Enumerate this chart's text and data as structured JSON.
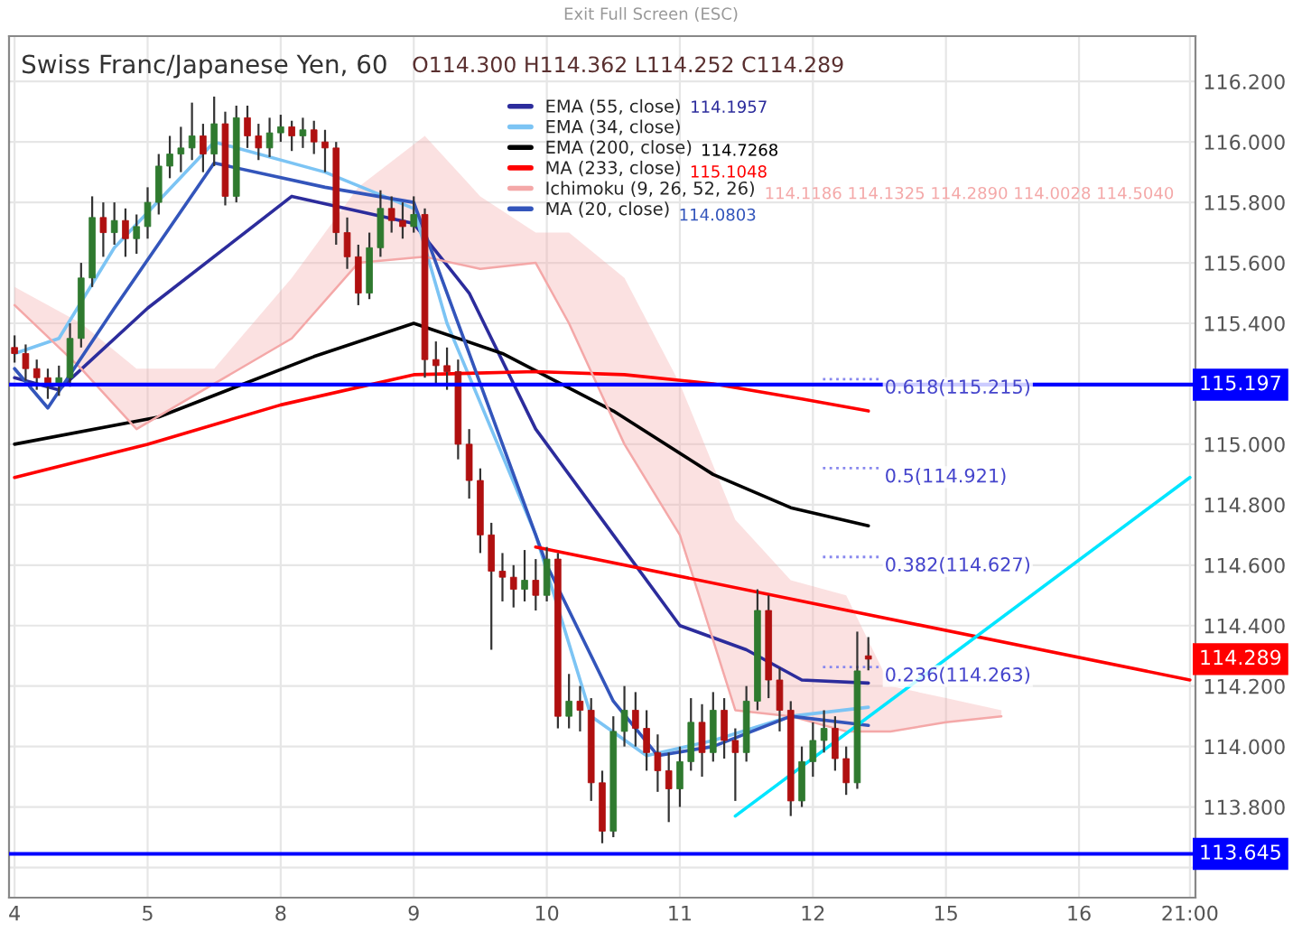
{
  "chart_data": {
    "type": "candlestick",
    "title": "Swiss Franc/Japanese Yen, 60",
    "subtitle": "O114.300 H114.362 L114.252 C114.289",
    "categories": [
      "4",
      null,
      null,
      null,
      null,
      null,
      null,
      null,
      null,
      null,
      null,
      null,
      "5",
      null,
      null,
      null,
      null,
      null,
      null,
      null,
      null,
      null,
      null,
      null,
      "8",
      null,
      null,
      null,
      null,
      null,
      null,
      null,
      null,
      null,
      null,
      null,
      "9",
      null,
      null,
      null,
      null,
      null,
      null,
      null,
      null,
      null,
      null,
      null,
      "10",
      null,
      null,
      null,
      null,
      null,
      null,
      null,
      null,
      null,
      null,
      null,
      "11",
      null,
      null,
      null,
      null,
      null,
      null,
      null,
      null,
      null,
      null,
      null,
      "12",
      null,
      null,
      null,
      null,
      null,
      null,
      null,
      null,
      null,
      null,
      null,
      "15",
      null,
      null,
      null,
      null,
      null,
      null,
      null,
      null,
      null,
      null,
      null,
      "16",
      null,
      null,
      null,
      null,
      null,
      null,
      null,
      null,
      null,
      "21:00"
    ],
    "ohlc": [
      [
        115.32,
        115.36,
        115.27,
        115.3
      ],
      [
        115.3,
        115.33,
        115.21,
        115.25
      ],
      [
        115.25,
        115.28,
        115.18,
        115.22
      ],
      [
        115.22,
        115.25,
        115.15,
        115.2
      ],
      [
        115.2,
        115.26,
        115.16,
        115.22
      ],
      [
        115.22,
        115.4,
        115.19,
        115.35
      ],
      [
        115.35,
        115.6,
        115.32,
        115.55
      ],
      [
        115.55,
        115.82,
        115.52,
        115.75
      ],
      [
        115.75,
        115.8,
        115.62,
        115.7
      ],
      [
        115.7,
        115.8,
        115.66,
        115.74
      ],
      [
        115.74,
        115.78,
        115.62,
        115.68
      ],
      [
        115.68,
        115.76,
        115.63,
        115.72
      ],
      [
        115.72,
        115.85,
        115.68,
        115.8
      ],
      [
        115.8,
        115.96,
        115.76,
        115.92
      ],
      [
        115.92,
        116.02,
        115.88,
        115.96
      ],
      [
        115.96,
        116.05,
        115.9,
        115.98
      ],
      [
        115.98,
        116.13,
        115.94,
        116.02
      ],
      [
        116.02,
        116.06,
        115.9,
        115.96
      ],
      [
        115.96,
        116.15,
        115.92,
        116.06
      ],
      [
        116.06,
        116.1,
        115.79,
        115.82
      ],
      [
        115.82,
        116.12,
        115.8,
        116.08
      ],
      [
        116.08,
        116.12,
        115.98,
        116.02
      ],
      [
        116.02,
        116.06,
        115.94,
        115.98
      ],
      [
        115.98,
        116.08,
        115.95,
        116.03
      ],
      [
        116.03,
        116.09,
        116.0,
        116.05
      ],
      [
        116.05,
        116.07,
        115.97,
        116.02
      ],
      [
        116.02,
        116.08,
        115.98,
        116.04
      ],
      [
        116.04,
        116.07,
        115.96,
        116.0
      ],
      [
        116.0,
        116.04,
        115.9,
        115.98
      ],
      [
        115.98,
        116.0,
        115.66,
        115.7
      ],
      [
        115.7,
        115.75,
        115.58,
        115.62
      ],
      [
        115.62,
        115.66,
        115.46,
        115.5
      ],
      [
        115.5,
        115.7,
        115.48,
        115.65
      ],
      [
        115.65,
        115.84,
        115.62,
        115.78
      ],
      [
        115.78,
        115.82,
        115.7,
        115.74
      ],
      [
        115.74,
        115.8,
        115.68,
        115.72
      ],
      [
        115.72,
        115.82,
        115.7,
        115.76
      ],
      [
        115.76,
        115.78,
        115.22,
        115.28
      ],
      [
        115.28,
        115.34,
        115.2,
        115.26
      ],
      [
        115.26,
        115.32,
        115.18,
        115.24
      ],
      [
        115.24,
        115.28,
        114.95,
        115.0
      ],
      [
        115.0,
        115.05,
        114.82,
        114.88
      ],
      [
        114.88,
        114.92,
        114.64,
        114.7
      ],
      [
        114.7,
        114.74,
        114.32,
        114.58
      ],
      [
        114.58,
        114.64,
        114.48,
        114.56
      ],
      [
        114.56,
        114.6,
        114.46,
        114.52
      ],
      [
        114.52,
        114.65,
        114.48,
        114.55
      ],
      [
        114.55,
        114.62,
        114.45,
        114.5
      ],
      [
        114.5,
        114.66,
        114.48,
        114.62
      ],
      [
        114.62,
        114.64,
        114.06,
        114.1
      ],
      [
        114.1,
        114.24,
        114.06,
        114.15
      ],
      [
        114.15,
        114.2,
        114.05,
        114.12
      ],
      [
        114.12,
        114.16,
        113.82,
        113.88
      ],
      [
        113.88,
        113.92,
        113.68,
        113.72
      ],
      [
        113.72,
        114.1,
        113.7,
        114.05
      ],
      [
        114.05,
        114.2,
        114.0,
        114.12
      ],
      [
        114.12,
        114.18,
        114.0,
        114.06
      ],
      [
        114.06,
        114.12,
        113.92,
        113.98
      ],
      [
        113.98,
        114.04,
        113.85,
        113.92
      ],
      [
        113.92,
        113.98,
        113.75,
        113.86
      ],
      [
        113.86,
        114.0,
        113.8,
        113.95
      ],
      [
        113.95,
        114.16,
        113.92,
        114.08
      ],
      [
        114.08,
        114.14,
        113.9,
        113.98
      ],
      [
        113.98,
        114.18,
        113.95,
        114.12
      ],
      [
        114.12,
        114.16,
        113.96,
        114.02
      ],
      [
        114.02,
        114.06,
        113.82,
        113.98
      ],
      [
        113.98,
        114.2,
        113.95,
        114.15
      ],
      [
        114.15,
        114.52,
        114.12,
        114.45
      ],
      [
        114.45,
        114.5,
        114.16,
        114.22
      ],
      [
        114.22,
        114.26,
        114.05,
        114.12
      ],
      [
        114.12,
        114.15,
        113.77,
        113.82
      ],
      [
        113.82,
        114.0,
        113.8,
        113.95
      ],
      [
        113.95,
        114.08,
        113.9,
        114.02
      ],
      [
        114.02,
        114.12,
        113.98,
        114.06
      ],
      [
        114.06,
        114.1,
        113.92,
        113.96
      ],
      [
        113.96,
        114.0,
        113.84,
        113.88
      ],
      [
        113.88,
        114.38,
        113.86,
        114.25
      ],
      [
        114.3,
        114.362,
        114.252,
        114.289
      ],
      null,
      null,
      null,
      null,
      null,
      null,
      null,
      null,
      null,
      null,
      null,
      null,
      null,
      null,
      null,
      null,
      null,
      null,
      null,
      null,
      null,
      null,
      null,
      null,
      null,
      null,
      null,
      null,
      null
    ],
    "series": [
      {
        "name": "EMA (55, close)",
        "type": "line",
        "color": "#2c2c9c",
        "values": [
          115.22,
          null,
          null,
          null,
          115.18,
          null,
          null,
          null,
          null,
          null,
          null,
          null,
          115.45,
          null,
          null,
          null,
          null,
          null,
          null,
          null,
          null,
          null,
          null,
          null,
          null,
          115.82,
          null,
          null,
          null,
          null,
          null,
          null,
          null,
          null,
          null,
          null,
          115.73,
          null,
          null,
          null,
          null,
          115.5,
          null,
          null,
          null,
          null,
          null,
          115.05,
          null,
          null,
          null,
          null,
          null,
          null,
          114.7,
          null,
          null,
          null,
          null,
          null,
          114.4,
          null,
          null,
          null,
          null,
          null,
          114.32,
          null,
          null,
          null,
          null,
          114.22,
          null,
          null,
          null,
          null,
          null,
          114.21,
          null,
          null,
          null,
          null,
          null,
          null,
          null,
          null,
          null,
          null,
          null,
          null,
          null,
          null,
          null,
          null,
          null,
          null,
          null,
          null,
          null,
          null,
          null,
          null,
          null,
          null,
          null,
          null,
          null
        ]
      },
      {
        "name": "EMA (34, close)",
        "type": "line",
        "color": "#7cc4f4",
        "values": [
          115.3,
          null,
          null,
          null,
          115.35,
          null,
          null,
          null,
          null,
          115.65,
          null,
          null,
          null,
          null,
          null,
          null,
          null,
          null,
          116.0,
          null,
          null,
          null,
          null,
          null,
          null,
          null,
          null,
          null,
          115.9,
          null,
          null,
          null,
          null,
          null,
          null,
          null,
          115.78,
          null,
          null,
          115.4,
          null,
          null,
          null,
          null,
          null,
          null,
          null,
          114.7,
          null,
          null,
          null,
          null,
          114.1,
          null,
          null,
          null,
          null,
          113.97,
          null,
          null,
          null,
          null,
          null,
          114.02,
          null,
          null,
          null,
          null,
          null,
          null,
          114.1,
          null,
          null,
          null,
          null,
          null,
          null,
          114.13,
          null,
          null,
          null,
          null,
          null,
          null,
          null,
          null,
          null,
          null,
          null,
          null,
          null,
          null,
          null,
          null,
          null,
          null,
          null,
          null,
          null,
          null,
          null,
          null,
          null,
          null,
          null,
          null,
          null
        ]
      },
      {
        "name": "EMA (200, close)",
        "type": "line",
        "color": "#000000",
        "values": [
          115.0,
          null,
          null,
          null,
          null,
          null,
          null,
          null,
          null,
          null,
          null,
          null,
          null,
          115.09,
          null,
          null,
          null,
          null,
          null,
          null,
          null,
          null,
          null,
          null,
          null,
          null,
          null,
          115.29,
          null,
          null,
          null,
          null,
          null,
          null,
          null,
          null,
          115.4,
          null,
          null,
          null,
          null,
          null,
          null,
          null,
          115.3,
          null,
          null,
          null,
          null,
          null,
          null,
          null,
          null,
          null,
          115.11,
          null,
          null,
          null,
          null,
          null,
          null,
          null,
          null,
          114.9,
          null,
          null,
          null,
          null,
          null,
          null,
          114.79,
          null,
          null,
          null,
          null,
          null,
          null,
          114.73,
          null,
          null,
          null,
          null,
          null,
          null,
          null,
          null,
          null,
          null,
          null,
          null,
          null,
          null,
          null,
          null,
          null,
          null,
          null,
          null,
          null,
          null,
          null,
          null,
          null,
          null,
          null,
          null,
          null
        ]
      },
      {
        "name": "MA (233, close)",
        "type": "line",
        "color": "#ff0000",
        "values": [
          114.89,
          null,
          null,
          null,
          null,
          null,
          null,
          null,
          null,
          null,
          null,
          null,
          115.0,
          null,
          null,
          null,
          null,
          null,
          null,
          null,
          null,
          null,
          null,
          null,
          115.13,
          null,
          null,
          null,
          null,
          null,
          null,
          null,
          null,
          null,
          null,
          null,
          115.23,
          null,
          null,
          null,
          null,
          null,
          null,
          null,
          null,
          null,
          null,
          115.24,
          null,
          null,
          null,
          null,
          null,
          null,
          null,
          115.23,
          null,
          null,
          null,
          null,
          null,
          null,
          null,
          115.2,
          null,
          null,
          null,
          null,
          null,
          null,
          null,
          115.15,
          null,
          null,
          null,
          null,
          null,
          115.11,
          null,
          null,
          null,
          null,
          null,
          null,
          null,
          null,
          null,
          null,
          null,
          null,
          null,
          null,
          null,
          null,
          null,
          null,
          null,
          null,
          null,
          null,
          null,
          null,
          null,
          null,
          null,
          null,
          null
        ]
      },
      {
        "name": "Ichimoku (9, 26, 52, 26)",
        "type": "line",
        "color": "#f4a8a8",
        "values": [
          115.46,
          null,
          null,
          null,
          null,
          null,
          115.25,
          null,
          null,
          null,
          null,
          115.05,
          null,
          null,
          null,
          null,
          null,
          null,
          115.2,
          null,
          null,
          null,
          null,
          null,
          null,
          115.35,
          null,
          null,
          null,
          null,
          null,
          115.6,
          null,
          null,
          null,
          null,
          null,
          115.62,
          null,
          null,
          null,
          null,
          115.58,
          null,
          null,
          null,
          null,
          115.6,
          null,
          null,
          115.4,
          null,
          null,
          null,
          null,
          115.0,
          null,
          null,
          null,
          null,
          114.7,
          null,
          null,
          null,
          null,
          114.12,
          null,
          null,
          null,
          null,
          114.1,
          null,
          null,
          null,
          null,
          114.05,
          null,
          null,
          null,
          114.05,
          null,
          null,
          null,
          null,
          114.08,
          null,
          null,
          null,
          null,
          114.1,
          null,
          null,
          null,
          null,
          null,
          null,
          null,
          null,
          null,
          null,
          null,
          null,
          null,
          null,
          null,
          null,
          null
        ],
        "lower": [
          115.46,
          null,
          null,
          null,
          null,
          null,
          115.25,
          null,
          null,
          null,
          null,
          115.05,
          null,
          null,
          null,
          null,
          null,
          null,
          115.2,
          null,
          null,
          null,
          null,
          null,
          null,
          115.35,
          null,
          null,
          null,
          null,
          null,
          115.6,
          null,
          null,
          null,
          null,
          null,
          115.62,
          null,
          null,
          null,
          null,
          115.58,
          null,
          null,
          null,
          null,
          115.6,
          null,
          null,
          115.4,
          null,
          null,
          null,
          null,
          115.0,
          null,
          null,
          null,
          null,
          114.7,
          null,
          null,
          null,
          null,
          114.12,
          null,
          null,
          null,
          null,
          114.1,
          null,
          null,
          null,
          null,
          114.05,
          null,
          null,
          null,
          114.05,
          null,
          null,
          null,
          null,
          114.08,
          null,
          null,
          null,
          null,
          114.1,
          null,
          null,
          null,
          null,
          null,
          null,
          null,
          null,
          null,
          null,
          null,
          null,
          null,
          null,
          null,
          null,
          null
        ],
        "upper": [
          115.52,
          null,
          null,
          null,
          null,
          null,
          115.4,
          null,
          null,
          null,
          null,
          115.25,
          null,
          null,
          null,
          null,
          null,
          null,
          115.25,
          null,
          null,
          null,
          null,
          null,
          null,
          115.55,
          null,
          null,
          null,
          null,
          null,
          115.85,
          null,
          null,
          null,
          null,
          null,
          116.02,
          null,
          null,
          null,
          null,
          115.82,
          null,
          null,
          null,
          null,
          115.7,
          null,
          null,
          115.7,
          null,
          null,
          null,
          null,
          115.55,
          null,
          null,
          null,
          null,
          115.2,
          null,
          null,
          null,
          null,
          114.75,
          null,
          null,
          null,
          null,
          114.55,
          null,
          null,
          null,
          null,
          114.5,
          null,
          null,
          null,
          114.2,
          null,
          null,
          null,
          null,
          114.16,
          null,
          null,
          null,
          null,
          114.12,
          null,
          null,
          null,
          null,
          null,
          null,
          null,
          null,
          null,
          null,
          null,
          null,
          null,
          null,
          null,
          null,
          null
        ]
      },
      {
        "name": "MA (20, close)",
        "type": "line",
        "color": "#3355bb",
        "values": [
          115.25,
          null,
          null,
          115.12,
          null,
          null,
          null,
          null,
          null,
          115.45,
          null,
          null,
          null,
          null,
          null,
          null,
          null,
          null,
          115.93,
          null,
          null,
          null,
          null,
          null,
          null,
          null,
          null,
          null,
          115.85,
          null,
          null,
          null,
          null,
          null,
          null,
          null,
          115.8,
          null,
          null,
          null,
          null,
          115.3,
          null,
          null,
          null,
          null,
          null,
          null,
          114.6,
          null,
          null,
          null,
          null,
          null,
          114.15,
          null,
          null,
          null,
          113.97,
          null,
          null,
          null,
          null,
          114.0,
          null,
          null,
          null,
          null,
          null,
          null,
          114.1,
          null,
          null,
          null,
          null,
          null,
          null,
          114.07,
          null,
          null,
          null,
          null,
          null,
          null,
          null,
          null,
          null,
          null,
          null,
          null,
          null,
          null,
          null,
          null,
          null,
          null,
          null,
          null,
          null,
          null,
          null,
          null,
          null,
          null,
          null,
          null,
          null
        ]
      },
      {
        "type": "line",
        "color": "#ff0000",
        "values": [
          null,
          null,
          null,
          null,
          null,
          null,
          null,
          null,
          null,
          null,
          null,
          null,
          null,
          null,
          null,
          null,
          null,
          null,
          null,
          null,
          null,
          null,
          null,
          null,
          null,
          null,
          null,
          null,
          null,
          null,
          null,
          null,
          null,
          null,
          null,
          null,
          null,
          null,
          null,
          null,
          null,
          null,
          null,
          null,
          null,
          null,
          null,
          114.66,
          null,
          null,
          null,
          null,
          null,
          null,
          null,
          null,
          null,
          null,
          null,
          null,
          null,
          null,
          null,
          null,
          null,
          null,
          null,
          null,
          null,
          null,
          null,
          null,
          null,
          null,
          null,
          null,
          null,
          null,
          null,
          null,
          null,
          null,
          null,
          null,
          null,
          null,
          null,
          null,
          null,
          null,
          null,
          null,
          null,
          null,
          null,
          null,
          null,
          null,
          null,
          null,
          null,
          null,
          null,
          null,
          null,
          null,
          114.22
        ]
      },
      {
        "type": "line",
        "color": "#00e5ff",
        "values": [
          null,
          null,
          null,
          null,
          null,
          null,
          null,
          null,
          null,
          null,
          null,
          null,
          null,
          null,
          null,
          null,
          null,
          null,
          null,
          null,
          null,
          null,
          null,
          null,
          null,
          null,
          null,
          null,
          null,
          null,
          null,
          null,
          null,
          null,
          null,
          null,
          null,
          null,
          null,
          null,
          null,
          null,
          null,
          null,
          null,
          null,
          null,
          null,
          null,
          null,
          null,
          null,
          null,
          null,
          null,
          null,
          null,
          null,
          null,
          null,
          null,
          null,
          null,
          null,
          null,
          113.77,
          null,
          null,
          null,
          null,
          null,
          null,
          null,
          null,
          null,
          null,
          null,
          null,
          null,
          null,
          null,
          null,
          null,
          null,
          null,
          null,
          null,
          null,
          null,
          null,
          null,
          null,
          null,
          null,
          null,
          null,
          null,
          null,
          null,
          null,
          null,
          null,
          null,
          null,
          null,
          null,
          114.89
        ]
      }
    ],
    "ylim": [
      113.5,
      116.35
    ],
    "yticks": [
      {
        "value": 113.6,
        "label": null
      },
      {
        "value": 113.8,
        "label": "113.800"
      },
      {
        "value": 114.0,
        "label": "114.000"
      },
      {
        "value": 114.2,
        "label": "114.200"
      },
      {
        "value": 114.4,
        "label": "114.400"
      },
      {
        "value": 114.6,
        "label": "114.600"
      },
      {
        "value": 114.8,
        "label": "114.800"
      },
      {
        "value": 115.0,
        "label": "115.000"
      },
      {
        "value": 115.2,
        "label": null
      },
      {
        "value": 115.4,
        "label": "115.400"
      },
      {
        "value": 115.6,
        "label": "115.600"
      },
      {
        "value": 115.8,
        "label": "115.800"
      },
      {
        "value": 116.0,
        "label": "116.000"
      },
      {
        "value": 116.2,
        "label": "116.200"
      }
    ],
    "ref_lines": [
      {
        "axis": "y",
        "value": 115.197,
        "label": "115.197",
        "color": "#0000ff",
        "line_style": "solid"
      },
      {
        "axis": "y",
        "value": 113.645,
        "label": "113.645",
        "color": "#0000ff",
        "line_style": "solid"
      },
      {
        "axis": "y",
        "value": 115.215,
        "label": "0.618(115.215)",
        "color": "#8888ee",
        "line_style": "dotted"
      },
      {
        "axis": "y",
        "value": 114.921,
        "label": "0.5(114.921)",
        "color": "#8888ee",
        "line_style": "dotted"
      },
      {
        "axis": "y",
        "value": 114.627,
        "label": "0.382(114.627)",
        "color": "#8888ee",
        "line_style": "dotted"
      },
      {
        "axis": "y",
        "value": 114.263,
        "label": "0.236(114.263)",
        "color": "#8888ee",
        "line_style": "dotted"
      }
    ],
    "annotations": [
      "Exit Full Screen (ESC)",
      "114.1957",
      "114.7268",
      "115.1048",
      "114.1186 114.1325 114.2890 114.0028 114.5040",
      "114.0803",
      "114.289"
    ],
    "grid": true,
    "legend": "top right"
  }
}
